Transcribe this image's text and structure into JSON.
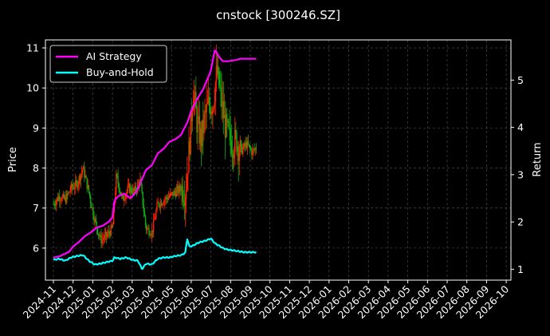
{
  "chart_data": {
    "type": "line",
    "title": "cnstock [300246.SZ]",
    "ylabel": "Price",
    "y2label": "Return",
    "yticks": [
      6,
      7,
      8,
      9,
      10,
      11
    ],
    "ylim": [
      5.2,
      11.2
    ],
    "y2ticks": [
      1,
      2,
      3,
      4,
      5
    ],
    "y2lim": [
      0.77,
      5.85
    ],
    "xtick_labels": [
      "2024-11",
      "2024-12",
      "2025-01",
      "2025-02",
      "2025-03",
      "2025-04",
      "2025-05",
      "2025-06",
      "2025-07",
      "2025-08",
      "2025-09",
      "2025-10",
      "2025-11",
      "2025-12",
      "2026-01",
      "2026-02",
      "2026-03",
      "2026-04",
      "2026-05",
      "2026-06",
      "2026-07",
      "2026-08",
      "2026-09",
      "2026-10"
    ],
    "grid": true,
    "legend_position": "upper-left",
    "colors": {
      "background": "#000000",
      "ai_strategy": "#ff00ff",
      "buy_and_hold": "#00ffff",
      "candle_up": "#ff2200",
      "candle_down": "#11aa11",
      "grid": "#555555"
    },
    "price_anchors": {
      "months": [
        0,
        0.3,
        0.6,
        0.9,
        1.2,
        1.5,
        1.8,
        2.1,
        2.4,
        2.7,
        3.0,
        3.2,
        3.5,
        3.8,
        4.1,
        4.4,
        4.7,
        5.0,
        5.3,
        5.6,
        5.9,
        6.2,
        6.5,
        6.7,
        6.9,
        7.1,
        7.3,
        7.5,
        7.7,
        7.9,
        8.1,
        8.3,
        8.5,
        8.7,
        8.9,
        9.1,
        9.3,
        9.5,
        9.8,
        10.1,
        10.3
      ],
      "values": [
        7.1,
        7.3,
        7.2,
        7.5,
        7.6,
        8.0,
        7.4,
        6.7,
        6.2,
        6.3,
        6.5,
        7.8,
        7.2,
        7.5,
        7.4,
        7.7,
        6.5,
        6.4,
        7.1,
        7.2,
        7.3,
        7.4,
        7.5,
        7.4,
        8.5,
        10.0,
        9.1,
        8.7,
        9.3,
        9.6,
        9.6,
        10.4,
        9.8,
        9.1,
        8.8,
        8.6,
        8.7,
        8.4,
        8.6,
        8.4,
        8.5
      ]
    },
    "series": [
      {
        "name": "AI Strategy",
        "months": [
          0,
          0.3,
          0.6,
          0.8,
          1.0,
          1.3,
          1.6,
          1.9,
          2.2,
          2.5,
          2.8,
          3.0,
          3.1,
          3.3,
          3.6,
          3.9,
          4.2,
          4.5,
          4.7,
          5.0,
          5.3,
          5.6,
          5.9,
          6.2,
          6.5,
          6.6,
          6.8,
          7.0,
          7.3,
          7.6,
          7.8,
          8.0,
          8.2,
          8.4,
          8.6,
          8.9,
          9.2,
          9.5,
          9.9,
          10.3
        ],
        "values": [
          1.25,
          1.27,
          1.33,
          1.37,
          1.48,
          1.58,
          1.7,
          1.78,
          1.88,
          1.92,
          2.0,
          2.1,
          2.45,
          2.55,
          2.6,
          2.5,
          2.63,
          2.9,
          3.1,
          3.2,
          3.45,
          3.55,
          3.7,
          3.75,
          3.85,
          3.95,
          4.1,
          4.35,
          4.6,
          4.8,
          5.0,
          5.2,
          5.65,
          5.5,
          5.4,
          5.4,
          5.42,
          5.45,
          5.45,
          5.45
        ]
      },
      {
        "name": "Buy-and-Hold",
        "months": [
          0,
          0.3,
          0.6,
          0.9,
          1.2,
          1.5,
          1.8,
          2.1,
          2.4,
          2.7,
          3.0,
          3.1,
          3.4,
          3.7,
          4.0,
          4.3,
          4.5,
          4.7,
          5.0,
          5.3,
          5.6,
          5.9,
          6.2,
          6.5,
          6.7,
          6.8,
          6.9,
          7.1,
          7.3,
          7.5,
          7.7,
          8.0,
          8.2,
          8.4,
          8.6,
          8.8,
          9.1,
          9.4,
          9.7,
          10.0,
          10.3
        ],
        "values": [
          1.2,
          1.22,
          1.18,
          1.25,
          1.28,
          1.3,
          1.18,
          1.1,
          1.12,
          1.15,
          1.18,
          1.25,
          1.22,
          1.25,
          1.2,
          1.18,
          1.0,
          1.12,
          1.1,
          1.22,
          1.25,
          1.25,
          1.28,
          1.3,
          1.35,
          1.65,
          1.48,
          1.5,
          1.55,
          1.58,
          1.6,
          1.65,
          1.55,
          1.5,
          1.45,
          1.42,
          1.4,
          1.38,
          1.36,
          1.36,
          1.36
        ]
      }
    ]
  }
}
